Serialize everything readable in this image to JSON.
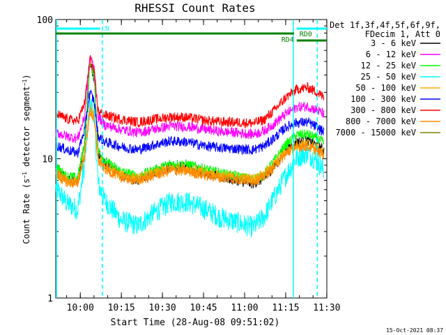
{
  "chart_data": {
    "type": "line",
    "title": "RHESSI Count Rates",
    "xlabel": "Start Time (28-Aug-08 09:51:02)",
    "ylabel_main": "Count Rate (s",
    "ylabel_sup": "−1",
    "ylabel_rest": " detector segment",
    "ylabel_sup2": "−1",
    "ylabel_end": ")",
    "y_scale": "log",
    "ylim": [
      1,
      100
    ],
    "xlim_minutes": [
      0,
      99
    ],
    "x_ticks": [
      {
        "label": "10:00",
        "minutes": 8.97
      },
      {
        "label": "10:15",
        "minutes": 23.97
      },
      {
        "label": "10:30",
        "minutes": 38.97
      },
      {
        "label": "10:45",
        "minutes": 53.97
      },
      {
        "label": "11:00",
        "minutes": 68.97
      },
      {
        "label": "11:15",
        "minutes": 83.97
      },
      {
        "label": "11:30",
        "minutes": 98.97
      }
    ],
    "y_ticks": [
      {
        "label": "1",
        "value": 1
      },
      {
        "label": "10",
        "value": 10
      },
      {
        "label": "100",
        "value": 100
      }
    ],
    "legend_header": [
      "Det 1f,3f,4f,5f,6f,9f,",
      "FDecim 1, Att 0"
    ],
    "legend_position": "top-right outside",
    "series": [
      {
        "name": "3 - 6 keV",
        "color": "#000000",
        "points": [
          [
            0,
            8.5
          ],
          [
            4,
            7.2
          ],
          [
            8,
            7.0
          ],
          [
            10.5,
            12
          ],
          [
            12.5,
            48
          ],
          [
            14,
            38
          ],
          [
            15.5,
            11
          ],
          [
            18,
            9.2
          ],
          [
            24,
            7.6
          ],
          [
            30,
            7.0
          ],
          [
            36,
            7.9
          ],
          [
            42,
            8.8
          ],
          [
            48,
            8.7
          ],
          [
            54,
            8.1
          ],
          [
            60,
            7.4
          ],
          [
            66,
            7.0
          ],
          [
            72,
            6.6
          ],
          [
            76,
            7.2
          ],
          [
            80,
            9.0
          ],
          [
            84,
            11.5
          ],
          [
            88,
            13.2
          ],
          [
            92,
            13.5
          ],
          [
            95,
            12.6
          ],
          [
            98,
            11.5
          ]
        ]
      },
      {
        "name": "6 - 12 keV",
        "color": "#ff00ff",
        "points": [
          [
            0,
            15.5
          ],
          [
            4,
            14.5
          ],
          [
            8,
            14.0
          ],
          [
            10.5,
            20
          ],
          [
            12.5,
            55
          ],
          [
            14,
            45
          ],
          [
            15.5,
            20
          ],
          [
            18,
            17.5
          ],
          [
            24,
            16.2
          ],
          [
            30,
            15.4
          ],
          [
            36,
            16.3
          ],
          [
            42,
            17.2
          ],
          [
            48,
            17.0
          ],
          [
            54,
            16.3
          ],
          [
            60,
            15.7
          ],
          [
            66,
            15.4
          ],
          [
            72,
            15.0
          ],
          [
            76,
            15.8
          ],
          [
            80,
            18.0
          ],
          [
            84,
            21.0
          ],
          [
            88,
            23.5
          ],
          [
            92,
            23.8
          ],
          [
            95,
            22.5
          ],
          [
            98,
            21.0
          ]
        ]
      },
      {
        "name": "12 - 25 keV",
        "color": "#00ff00",
        "points": [
          [
            0,
            8.8
          ],
          [
            4,
            7.5
          ],
          [
            8,
            7.3
          ],
          [
            10.5,
            13
          ],
          [
            12.5,
            50
          ],
          [
            14,
            40
          ],
          [
            15.5,
            11.5
          ],
          [
            18,
            9.6
          ],
          [
            24,
            8.1
          ],
          [
            30,
            7.5
          ],
          [
            36,
            8.3
          ],
          [
            42,
            9.2
          ],
          [
            48,
            9.1
          ],
          [
            54,
            8.5
          ],
          [
            60,
            7.9
          ],
          [
            66,
            7.5
          ],
          [
            72,
            7.1
          ],
          [
            76,
            7.7
          ],
          [
            80,
            9.8
          ],
          [
            84,
            12.6
          ],
          [
            88,
            14.8
          ],
          [
            92,
            15.0
          ],
          [
            95,
            14.1
          ],
          [
            98,
            13.0
          ]
        ]
      },
      {
        "name": "25 - 50 keV",
        "color": "#00ffff",
        "points": [
          [
            0,
            6.2
          ],
          [
            4,
            4.8
          ],
          [
            8,
            4.3
          ],
          [
            10.5,
            9
          ],
          [
            12.5,
            25
          ],
          [
            14,
            21
          ],
          [
            15.5,
            6.5
          ],
          [
            18,
            5.0
          ],
          [
            24,
            3.6
          ],
          [
            30,
            3.3
          ],
          [
            36,
            4.1
          ],
          [
            42,
            4.9
          ],
          [
            48,
            4.9
          ],
          [
            54,
            4.4
          ],
          [
            60,
            3.8
          ],
          [
            66,
            3.5
          ],
          [
            72,
            3.2
          ],
          [
            76,
            3.8
          ],
          [
            80,
            5.4
          ],
          [
            84,
            7.6
          ],
          [
            88,
            10.2
          ],
          [
            92,
            11.0
          ],
          [
            95,
            9.8
          ],
          [
            98,
            8.2
          ]
        ]
      },
      {
        "name": "50 - 100 keV",
        "color": "#ffaa00",
        "points": [
          [
            0,
            8.0
          ],
          [
            4,
            7.0
          ],
          [
            8,
            6.8
          ],
          [
            10.5,
            11
          ],
          [
            12.5,
            23
          ],
          [
            14,
            20
          ],
          [
            15.5,
            10
          ],
          [
            18,
            8.8
          ],
          [
            24,
            7.6
          ],
          [
            30,
            7.2
          ],
          [
            36,
            7.9
          ],
          [
            42,
            8.6
          ],
          [
            48,
            8.5
          ],
          [
            54,
            8.0
          ],
          [
            60,
            7.6
          ],
          [
            66,
            7.4
          ],
          [
            72,
            7.2
          ],
          [
            76,
            7.7
          ],
          [
            80,
            9.2
          ],
          [
            84,
            11.2
          ],
          [
            88,
            12.6
          ],
          [
            92,
            12.9
          ],
          [
            95,
            12.0
          ],
          [
            98,
            11.0
          ]
        ]
      },
      {
        "name": "100 - 300 keV",
        "color": "#0000ff",
        "points": [
          [
            0,
            12.5
          ],
          [
            4,
            11.6
          ],
          [
            8,
            11.0
          ],
          [
            10.5,
            16
          ],
          [
            12.5,
            30
          ],
          [
            14,
            26
          ],
          [
            15.5,
            14.5
          ],
          [
            18,
            13.2
          ],
          [
            24,
            12.2
          ],
          [
            30,
            11.6
          ],
          [
            36,
            12.6
          ],
          [
            42,
            13.4
          ],
          [
            48,
            13.2
          ],
          [
            54,
            12.4
          ],
          [
            60,
            12.0
          ],
          [
            66,
            11.8
          ],
          [
            72,
            11.6
          ],
          [
            76,
            12.3
          ],
          [
            80,
            14.2
          ],
          [
            84,
            16.8
          ],
          [
            88,
            18.2
          ],
          [
            92,
            18.3
          ],
          [
            95,
            17.0
          ],
          [
            98,
            15.5
          ]
        ]
      },
      {
        "name": "300 - 800 keV",
        "color": "#ff0000",
        "points": [
          [
            0,
            21
          ],
          [
            4,
            19.3
          ],
          [
            8,
            18.6
          ],
          [
            10.5,
            25
          ],
          [
            12.5,
            52
          ],
          [
            14,
            42
          ],
          [
            15.5,
            22
          ],
          [
            18,
            20.5
          ],
          [
            24,
            19.2
          ],
          [
            30,
            18.3
          ],
          [
            36,
            19.2
          ],
          [
            42,
            20.0
          ],
          [
            48,
            19.8
          ],
          [
            54,
            18.9
          ],
          [
            60,
            18.4
          ],
          [
            66,
            18.3
          ],
          [
            72,
            18.0
          ],
          [
            76,
            19.0
          ],
          [
            80,
            22.5
          ],
          [
            84,
            27.5
          ],
          [
            88,
            31.5
          ],
          [
            92,
            32.5
          ],
          [
            95,
            30.5
          ],
          [
            98,
            27.5
          ]
        ]
      },
      {
        "name": "800 - 7000 keV",
        "color": "#ff8800",
        "points": [
          [
            0,
            7.6
          ],
          [
            4,
            6.8
          ],
          [
            8,
            6.6
          ],
          [
            10.5,
            10.5
          ],
          [
            12.5,
            22
          ],
          [
            14,
            19
          ],
          [
            15.5,
            9.6
          ],
          [
            18,
            8.4
          ],
          [
            24,
            7.3
          ],
          [
            30,
            6.9
          ],
          [
            36,
            7.6
          ],
          [
            42,
            8.2
          ],
          [
            48,
            8.1
          ],
          [
            54,
            7.6
          ],
          [
            60,
            7.3
          ],
          [
            66,
            7.1
          ],
          [
            72,
            6.9
          ],
          [
            76,
            7.4
          ],
          [
            80,
            8.8
          ],
          [
            84,
            10.8
          ],
          [
            88,
            12.1
          ],
          [
            92,
            12.3
          ],
          [
            95,
            11.5
          ],
          [
            98,
            10.6
          ]
        ]
      },
      {
        "name": "7000 - 15000 keV",
        "color": "#808000",
        "points": []
      }
    ],
    "annotations": {
      "n_label": "N",
      "rd0_label": "RD0",
      "rd4_label": "RD4",
      "n_bar_minutes": [
        0,
        17
      ],
      "rd0_bar_minutes": [
        88,
        99
      ],
      "attenuator_bar_minutes": [
        0,
        87
      ],
      "rd4_bar_minutes": [
        88,
        99
      ],
      "solid_vlines_minutes": [
        0,
        86.5
      ],
      "dashed_vlines_minutes": [
        17,
        95.5
      ]
    },
    "colors": {
      "marker_lines": "#00ffff",
      "state_bars": "#008000"
    },
    "timestamp": "15-Oct-2021 08:37"
  }
}
